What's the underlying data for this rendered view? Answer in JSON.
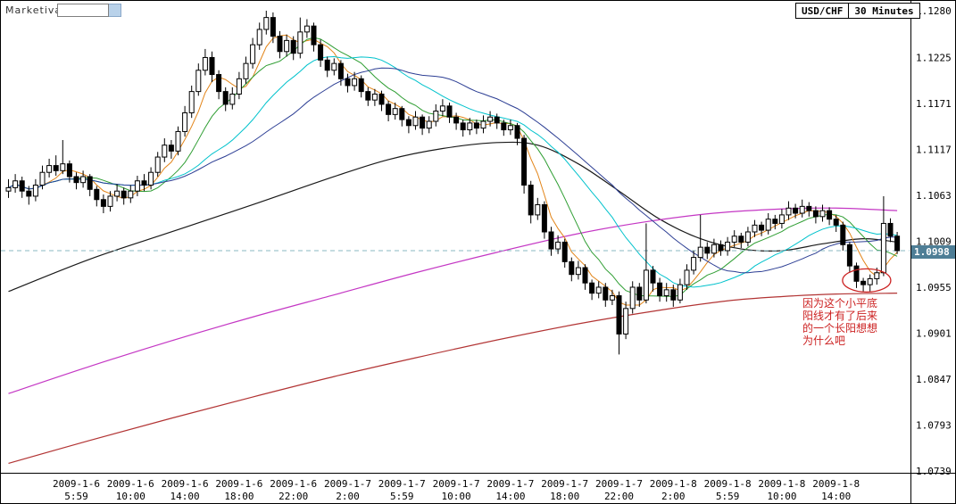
{
  "header": {
    "brand": "Marketiva",
    "symbol_input_value": "",
    "symbol": "USD/CHF",
    "timeframe": "30 Minutes"
  },
  "axis": {
    "price_labels": [
      "1.1280",
      "1.1225",
      "1.1171",
      "1.1117",
      "1.1063",
      "1.1009",
      "1.0955",
      "1.0901",
      "1.0847",
      "1.0793",
      "1.0739"
    ],
    "time_labels": [
      {
        "date": "2009-1-6",
        "time": "5:59",
        "index": 10
      },
      {
        "date": "2009-1-6",
        "time": "10:00",
        "index": 18
      },
      {
        "date": "2009-1-6",
        "time": "14:00",
        "index": 26
      },
      {
        "date": "2009-1-6",
        "time": "18:00",
        "index": 34
      },
      {
        "date": "2009-1-6",
        "time": "22:00",
        "index": 42
      },
      {
        "date": "2009-1-7",
        "time": "2:00",
        "index": 50
      },
      {
        "date": "2009-1-7",
        "time": "5:59",
        "index": 58
      },
      {
        "date": "2009-1-7",
        "time": "10:00",
        "index": 66
      },
      {
        "date": "2009-1-7",
        "time": "14:00",
        "index": 74
      },
      {
        "date": "2009-1-7",
        "time": "18:00",
        "index": 82
      },
      {
        "date": "2009-1-7",
        "time": "22:00",
        "index": 90
      },
      {
        "date": "2009-1-8",
        "time": "2:00",
        "index": 98
      },
      {
        "date": "2009-1-8",
        "time": "5:59",
        "index": 106
      },
      {
        "date": "2009-1-8",
        "time": "10:00",
        "index": 114
      },
      {
        "date": "2009-1-8",
        "time": "14:00",
        "index": 122
      }
    ]
  },
  "current_price": {
    "value": "1.0998",
    "tag_color": "#4e7e96"
  },
  "annotation": {
    "lines": [
      "因为这个小平底",
      "阳线才有了后来",
      "的一个长阳想想",
      "为什么吧"
    ],
    "color": "#cc2222",
    "ellipse": {
      "index": 126.5,
      "price": 1.0963
    }
  },
  "chart_data": {
    "type": "candlestick",
    "symbol": "USD/CHF",
    "interval": "30 Minutes",
    "start_time": "2009-01-06 01:00",
    "interval_minutes": 30,
    "price_range": [
      1.0739,
      1.128
    ],
    "grid_step": 0.0054,
    "last_price": 1.0998,
    "ohlc": [
      [
        1.1068,
        1.1082,
        1.106,
        1.1072
      ],
      [
        1.1072,
        1.1088,
        1.1066,
        1.108
      ],
      [
        1.108,
        1.1085,
        1.106,
        1.1068
      ],
      [
        1.1068,
        1.1074,
        1.1052,
        1.1062
      ],
      [
        1.1062,
        1.1082,
        1.1056,
        1.1075
      ],
      [
        1.1075,
        1.1098,
        1.107,
        1.109
      ],
      [
        1.109,
        1.1106,
        1.1084,
        1.1098
      ],
      [
        1.1098,
        1.111,
        1.1086,
        1.1092
      ],
      [
        1.1092,
        1.1128,
        1.1088,
        1.11
      ],
      [
        1.11,
        1.1104,
        1.1078,
        1.1085
      ],
      [
        1.1085,
        1.109,
        1.107,
        1.1078
      ],
      [
        1.1078,
        1.1092,
        1.1072,
        1.1085
      ],
      [
        1.1085,
        1.1088,
        1.1062,
        1.107
      ],
      [
        1.107,
        1.1074,
        1.105,
        1.1058
      ],
      [
        1.1058,
        1.1064,
        1.1042,
        1.105
      ],
      [
        1.105,
        1.1068,
        1.1044,
        1.1062
      ],
      [
        1.1062,
        1.1076,
        1.1056,
        1.1068
      ],
      [
        1.1068,
        1.1072,
        1.1052,
        1.106
      ],
      [
        1.106,
        1.1075,
        1.1054,
        1.1068
      ],
      [
        1.1068,
        1.1086,
        1.1062,
        1.108
      ],
      [
        1.108,
        1.1088,
        1.1068,
        1.1075
      ],
      [
        1.1075,
        1.1096,
        1.107,
        1.109
      ],
      [
        1.109,
        1.1114,
        1.1085,
        1.1108
      ],
      [
        1.1108,
        1.113,
        1.1102,
        1.1122
      ],
      [
        1.1122,
        1.1128,
        1.1106,
        1.1115
      ],
      [
        1.1115,
        1.1144,
        1.111,
        1.1138
      ],
      [
        1.1138,
        1.1168,
        1.1132,
        1.116
      ],
      [
        1.116,
        1.1192,
        1.1154,
        1.1185
      ],
      [
        1.1185,
        1.1218,
        1.118,
        1.121
      ],
      [
        1.121,
        1.1235,
        1.1204,
        1.1225
      ],
      [
        1.1225,
        1.1232,
        1.1196,
        1.1205
      ],
      [
        1.1205,
        1.121,
        1.1176,
        1.1185
      ],
      [
        1.1185,
        1.119,
        1.1162,
        1.117
      ],
      [
        1.117,
        1.119,
        1.1164,
        1.1182
      ],
      [
        1.1182,
        1.1208,
        1.1176,
        1.12
      ],
      [
        1.12,
        1.1226,
        1.1194,
        1.1218
      ],
      [
        1.1218,
        1.1248,
        1.1212,
        1.124
      ],
      [
        1.124,
        1.1266,
        1.1234,
        1.1258
      ],
      [
        1.1258,
        1.128,
        1.1252,
        1.1272
      ],
      [
        1.1272,
        1.1278,
        1.1242,
        1.125
      ],
      [
        1.125,
        1.1256,
        1.1224,
        1.1232
      ],
      [
        1.1232,
        1.1252,
        1.1226,
        1.1245
      ],
      [
        1.1245,
        1.125,
        1.1222,
        1.123
      ],
      [
        1.123,
        1.1272,
        1.1224,
        1.1255
      ],
      [
        1.1255,
        1.127,
        1.1248,
        1.1262
      ],
      [
        1.1262,
        1.1266,
        1.1232,
        1.124
      ],
      [
        1.124,
        1.1246,
        1.1214,
        1.1222
      ],
      [
        1.1222,
        1.1226,
        1.1202,
        1.121
      ],
      [
        1.121,
        1.1224,
        1.1204,
        1.1218
      ],
      [
        1.1218,
        1.1222,
        1.1192,
        1.12
      ],
      [
        1.12,
        1.1206,
        1.1184,
        1.1192
      ],
      [
        1.1192,
        1.1208,
        1.1186,
        1.12
      ],
      [
        1.12,
        1.1204,
        1.1178,
        1.1185
      ],
      [
        1.1185,
        1.119,
        1.1168,
        1.1175
      ],
      [
        1.1175,
        1.1188,
        1.1168,
        1.1182
      ],
      [
        1.1182,
        1.1186,
        1.1162,
        1.117
      ],
      [
        1.117,
        1.1174,
        1.115,
        1.1158
      ],
      [
        1.1158,
        1.1172,
        1.1152,
        1.1165
      ],
      [
        1.1165,
        1.1168,
        1.1144,
        1.1152
      ],
      [
        1.1152,
        1.1156,
        1.1136,
        1.1145
      ],
      [
        1.1145,
        1.1162,
        1.114,
        1.1155
      ],
      [
        1.1155,
        1.1158,
        1.1134,
        1.1142
      ],
      [
        1.1142,
        1.1156,
        1.1136,
        1.115
      ],
      [
        1.115,
        1.117,
        1.1144,
        1.1162
      ],
      [
        1.1162,
        1.1176,
        1.1156,
        1.1168
      ],
      [
        1.1168,
        1.1172,
        1.1148,
        1.1155
      ],
      [
        1.1155,
        1.116,
        1.114,
        1.1148
      ],
      [
        1.1148,
        1.1152,
        1.1132,
        1.114
      ],
      [
        1.114,
        1.1154,
        1.1134,
        1.1148
      ],
      [
        1.1148,
        1.1152,
        1.1135,
        1.1142
      ],
      [
        1.1142,
        1.1157,
        1.1136,
        1.115
      ],
      [
        1.115,
        1.1162,
        1.1144,
        1.1155
      ],
      [
        1.1155,
        1.1159,
        1.1141,
        1.1148
      ],
      [
        1.1148,
        1.1152,
        1.1133,
        1.114
      ],
      [
        1.114,
        1.1152,
        1.1134,
        1.1145
      ],
      [
        1.1145,
        1.1148,
        1.1122,
        1.113
      ],
      [
        1.113,
        1.1134,
        1.1065,
        1.1075
      ],
      [
        1.1075,
        1.108,
        1.103,
        1.104
      ],
      [
        1.104,
        1.106,
        1.1034,
        1.1052
      ],
      [
        1.1052,
        1.1056,
        1.1012,
        1.102
      ],
      [
        1.102,
        1.1026,
        1.0992,
        1.1
      ],
      [
        1.1,
        1.1016,
        1.0994,
        1.1008
      ],
      [
        1.1008,
        1.1012,
        1.0978,
        1.0985
      ],
      [
        1.0985,
        1.099,
        1.0962,
        1.097
      ],
      [
        1.097,
        1.0986,
        1.0964,
        1.0978
      ],
      [
        1.0978,
        1.0982,
        1.0952,
        1.096
      ],
      [
        1.096,
        1.0964,
        1.094,
        1.0948
      ],
      [
        1.0948,
        1.0962,
        1.0942,
        1.0955
      ],
      [
        1.0955,
        1.096,
        1.0932,
        1.094
      ],
      [
        1.094,
        1.0952,
        1.0934,
        1.0945
      ],
      [
        1.0945,
        1.095,
        1.0876,
        1.09
      ],
      [
        1.09,
        1.0938,
        1.0894,
        1.093
      ],
      [
        1.093,
        1.0962,
        1.0924,
        1.0955
      ],
      [
        1.0955,
        1.096,
        1.0932,
        1.094
      ],
      [
        1.094,
        1.103,
        1.0936,
        1.0975
      ],
      [
        1.0975,
        1.098,
        1.095,
        1.096
      ],
      [
        1.096,
        1.0966,
        1.0938,
        1.0945
      ],
      [
        1.0945,
        1.096,
        1.0938,
        1.0952
      ],
      [
        1.0952,
        1.0958,
        1.0932,
        1.094
      ],
      [
        1.094,
        1.0965,
        1.0936,
        1.0958
      ],
      [
        1.0958,
        1.0982,
        1.0952,
        1.0975
      ],
      [
        1.0975,
        1.0998,
        1.097,
        1.099
      ],
      [
        1.099,
        1.104,
        1.0985,
        1.1002
      ],
      [
        1.1002,
        1.1008,
        1.0988,
        1.0995
      ],
      [
        1.0995,
        1.1012,
        1.099,
        1.1005
      ],
      [
        1.1005,
        1.101,
        1.0992,
        1.0998
      ],
      [
        1.0998,
        1.1014,
        1.0992,
        1.1008
      ],
      [
        1.1008,
        1.1022,
        1.1002,
        1.1015
      ],
      [
        1.1015,
        1.1019,
        1.1001,
        1.1008
      ],
      [
        1.1008,
        1.1026,
        1.1003,
        1.102
      ],
      [
        1.102,
        1.1034,
        1.1014,
        1.1028
      ],
      [
        1.1028,
        1.1032,
        1.1015,
        1.1022
      ],
      [
        1.1022,
        1.1042,
        1.1017,
        1.1035
      ],
      [
        1.1035,
        1.104,
        1.1023,
        1.103
      ],
      [
        1.103,
        1.1047,
        1.1024,
        1.104
      ],
      [
        1.104,
        1.1056,
        1.1034,
        1.1048
      ],
      [
        1.1048,
        1.1053,
        1.1036,
        1.1042
      ],
      [
        1.1042,
        1.1058,
        1.1037,
        1.105
      ],
      [
        1.105,
        1.1055,
        1.1038,
        1.1045
      ],
      [
        1.1045,
        1.105,
        1.103,
        1.1038
      ],
      [
        1.1038,
        1.1052,
        1.1032,
        1.1045
      ],
      [
        1.1045,
        1.1049,
        1.1028,
        1.1035
      ],
      [
        1.1035,
        1.104,
        1.102,
        1.1028
      ],
      [
        1.1028,
        1.1032,
        1.0998,
        1.1005
      ],
      [
        1.1005,
        1.1008,
        1.0972,
        1.098
      ],
      [
        1.098,
        1.0984,
        1.0954,
        1.0962
      ],
      [
        1.0962,
        1.0966,
        1.095,
        1.0958
      ],
      [
        1.0958,
        1.097,
        1.095,
        1.0965
      ],
      [
        1.0965,
        1.0978,
        1.0958,
        1.0972
      ],
      [
        1.0972,
        1.1062,
        1.0968,
        1.103
      ],
      [
        1.103,
        1.1036,
        1.1008,
        1.1015
      ],
      [
        1.1015,
        1.102,
        1.0994,
        1.0998
      ]
    ],
    "ma_computed": [
      {
        "name": "MA5",
        "period": 5,
        "color": "#e28418"
      },
      {
        "name": "MA10",
        "period": 10,
        "color": "#2f9e33"
      },
      {
        "name": "MA20",
        "period": 20,
        "color": "#00c2cc"
      },
      {
        "name": "MA30",
        "period": 30,
        "color": "#2c3e94"
      }
    ],
    "ma_overlay": [
      {
        "name": "slow-black",
        "color": "#1a1a1a",
        "points": [
          [
            0,
            1.095
          ],
          [
            12,
            1.0988
          ],
          [
            24,
            1.102
          ],
          [
            36,
            1.1052
          ],
          [
            48,
            1.1085
          ],
          [
            56,
            1.1105
          ],
          [
            64,
            1.1118
          ],
          [
            72,
            1.1125
          ],
          [
            78,
            1.1122
          ],
          [
            84,
            1.11
          ],
          [
            90,
            1.1068
          ],
          [
            96,
            1.1035
          ],
          [
            102,
            1.1012
          ],
          [
            108,
            1.1
          ],
          [
            114,
            1.0998
          ],
          [
            120,
            1.1006
          ],
          [
            126,
            1.1012
          ],
          [
            131,
            1.1008
          ]
        ]
      },
      {
        "name": "slow-magenta",
        "color": "#c437c4",
        "points": [
          [
            0,
            1.083
          ],
          [
            12,
            1.0862
          ],
          [
            24,
            1.0892
          ],
          [
            36,
            1.092
          ],
          [
            48,
            1.0946
          ],
          [
            60,
            1.0972
          ],
          [
            72,
            1.0996
          ],
          [
            84,
            1.1018
          ],
          [
            94,
            1.1032
          ],
          [
            104,
            1.1042
          ],
          [
            114,
            1.1047
          ],
          [
            122,
            1.1048
          ],
          [
            131,
            1.1045
          ]
        ]
      },
      {
        "name": "slow-darkred",
        "color": "#b23434",
        "points": [
          [
            0,
            1.0748
          ],
          [
            12,
            1.0775
          ],
          [
            24,
            1.0801
          ],
          [
            36,
            1.0826
          ],
          [
            48,
            1.085
          ],
          [
            60,
            1.0872
          ],
          [
            72,
            1.0893
          ],
          [
            84,
            1.0912
          ],
          [
            96,
            1.0928
          ],
          [
            106,
            1.0939
          ],
          [
            114,
            1.0944
          ],
          [
            122,
            1.0947
          ],
          [
            131,
            1.0948
          ]
        ]
      }
    ]
  },
  "colors": {
    "bull_candle": "#ffffff",
    "bear_candle": "#000000",
    "candle_outline": "#000000",
    "current_price_line": "#88b8c0",
    "annotation_red": "#cc2222",
    "price_tag_bg": "#4e7e96"
  }
}
